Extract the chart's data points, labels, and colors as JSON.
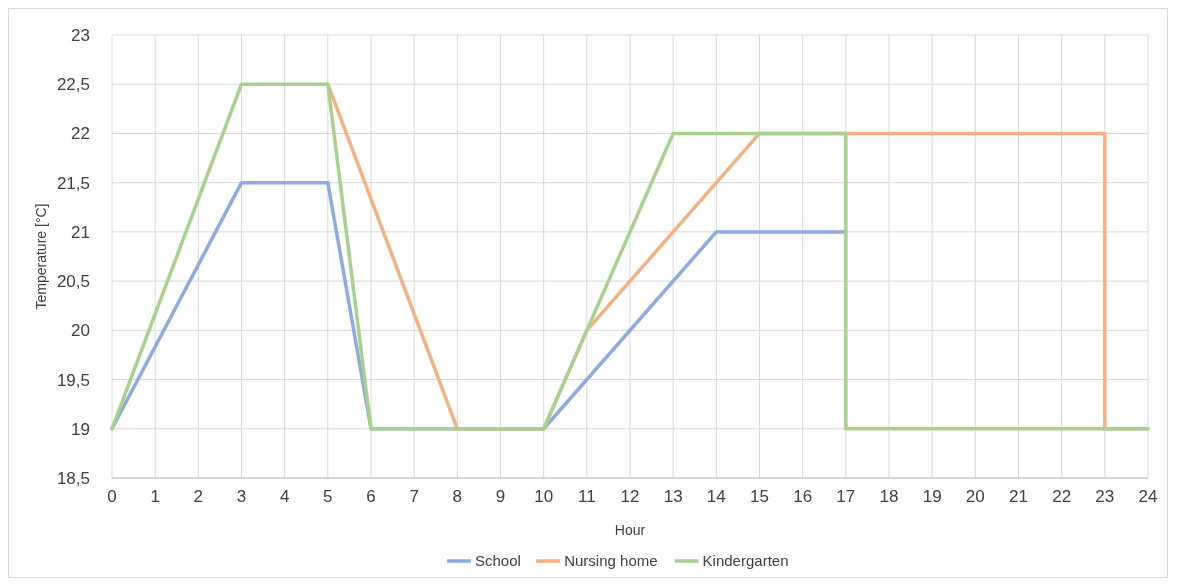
{
  "chart_data": {
    "type": "line",
    "xlabel": "Hour",
    "ylabel": "Temperature [°C]",
    "xlim": [
      0,
      24
    ],
    "xticks": [
      0,
      1,
      2,
      3,
      4,
      5,
      6,
      7,
      8,
      9,
      10,
      11,
      12,
      13,
      14,
      15,
      16,
      17,
      18,
      19,
      20,
      21,
      22,
      23,
      24
    ],
    "ylim": [
      18.5,
      23
    ],
    "yticks": [
      {
        "value": 18.5,
        "label": "18,5"
      },
      19,
      {
        "value": 19.5,
        "label": "19,5"
      },
      20,
      {
        "value": 20.5,
        "label": "20,5"
      },
      21,
      {
        "value": 21.5,
        "label": "21,5"
      },
      22,
      {
        "value": 22.5,
        "label": "22,5"
      },
      23
    ],
    "grid": true,
    "legend": "bottom",
    "marker": "none",
    "line_style": "solid",
    "series": [
      {
        "name": "School",
        "color": "#8faadc",
        "x": [
          0,
          3,
          5,
          6,
          10,
          14,
          17
        ],
        "values": [
          19,
          21.5,
          21.5,
          19,
          19,
          21,
          21
        ]
      },
      {
        "name": "Nursing home",
        "color": "#f4b183",
        "x": [
          5,
          8,
          10,
          11,
          15,
          23,
          23,
          24
        ],
        "values": [
          22.5,
          19,
          19,
          20,
          22,
          22,
          19,
          19
        ]
      },
      {
        "name": "Kindergarten",
        "color": "#a9d18e",
        "x": [
          0,
          3,
          5,
          6,
          10,
          13,
          17,
          17,
          24
        ],
        "values": [
          19,
          22.5,
          22.5,
          19,
          19,
          22,
          22,
          19,
          19
        ]
      }
    ]
  }
}
